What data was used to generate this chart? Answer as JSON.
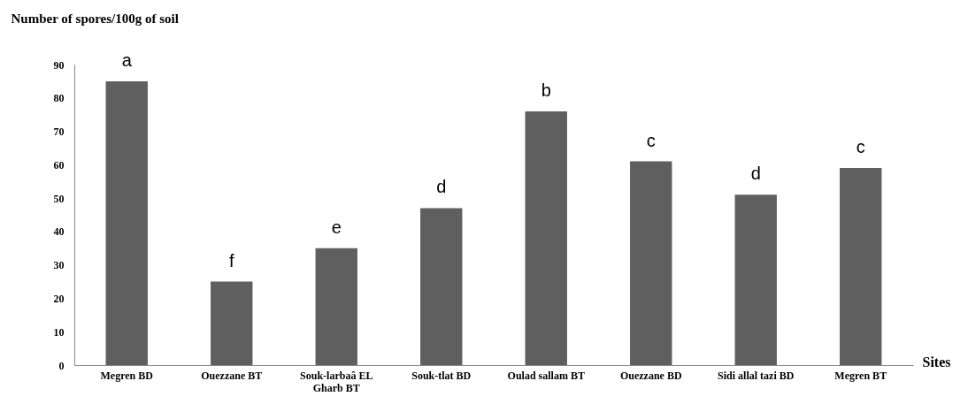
{
  "chart_data": {
    "type": "bar",
    "ylabel": "Number of spores/100g of soil",
    "xlabel": "Sites",
    "categories": [
      "Megren BD",
      "Ouezzane BT",
      "Souk-larbaâ EL Gharb BT",
      "Souk-tlat BD",
      "Oulad sallam BT",
      "Ouezzane BD",
      "Sidi allal tazi BD",
      "Megren BT"
    ],
    "values": [
      85,
      25,
      35,
      47,
      76,
      61,
      51,
      59
    ],
    "color": "#5f5f5f",
    "ylim": [
      0,
      90
    ],
    "yticks": [
      0,
      10,
      20,
      30,
      40,
      50,
      60,
      70,
      80,
      90
    ],
    "grid": false,
    "annotations": [
      {
        "text": "a",
        "x": "Megren BD",
        "y": 85
      },
      {
        "text": "f",
        "x": "Ouezzane BT",
        "y": 25
      },
      {
        "text": "e",
        "x": "Souk-larbaâ EL Gharb BT",
        "y": 35
      },
      {
        "text": "d",
        "x": "Souk-tlat BD",
        "y": 47
      },
      {
        "text": "b",
        "x": "Oulad sallam BT",
        "y": 76
      },
      {
        "text": "c",
        "x": "Ouezzane BD",
        "y": 61
      },
      {
        "text": "d",
        "x": "Sidi allal tazi BD",
        "y": 51
      },
      {
        "text": "c",
        "x": "Megren BT",
        "y": 59
      }
    ]
  }
}
